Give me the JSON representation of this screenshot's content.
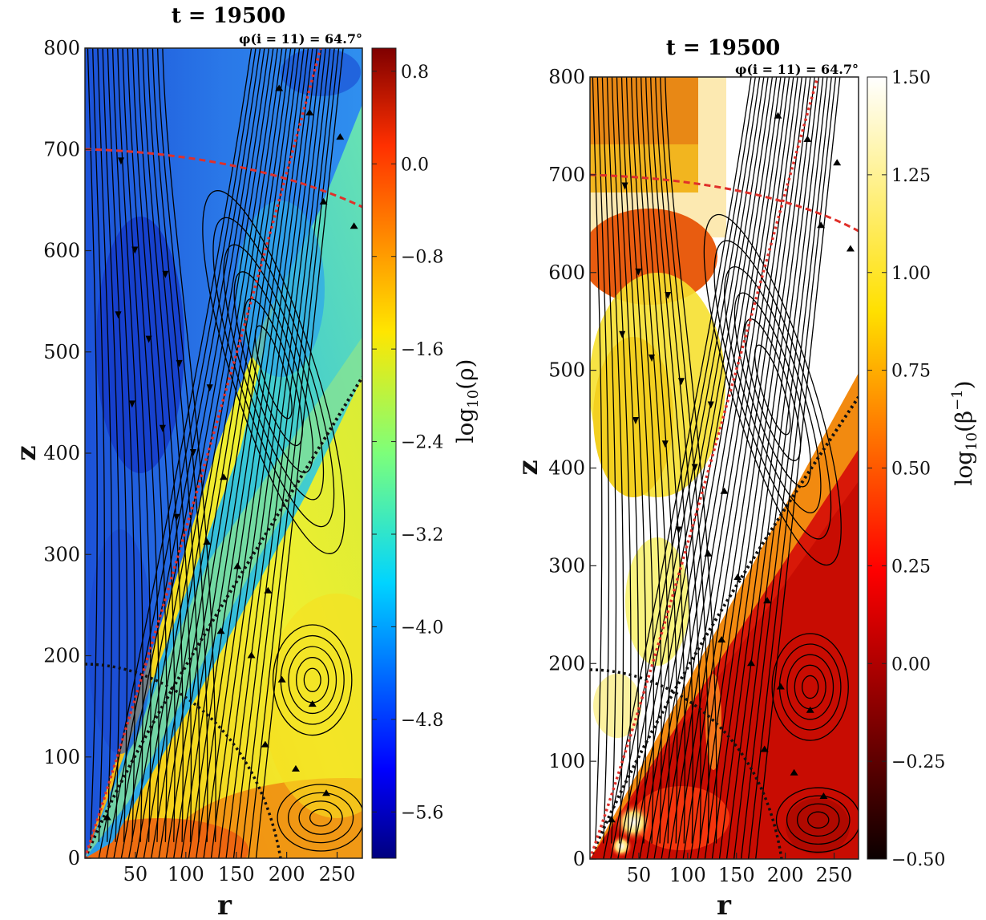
{
  "chart_data": [
    {
      "type": "heatmap",
      "title": "t = 19500",
      "subtitle": "φ(i = 11) = 64.7°",
      "xlabel": "r",
      "ylabel": "z",
      "xlim": [
        0,
        275
      ],
      "ylim": [
        0,
        800
      ],
      "xticks": [
        "50",
        "100",
        "150",
        "200",
        "250"
      ],
      "yticks": [
        "0",
        "100",
        "200",
        "300",
        "400",
        "500",
        "600",
        "700",
        "800"
      ],
      "colorbar": {
        "label": "log10(ρ)",
        "range": [
          -6.0,
          1.0
        ],
        "ticks": [
          "0.8",
          "0.0",
          "−0.8",
          "−1.6",
          "−2.4",
          "−3.2",
          "−4.0",
          "−4.8",
          "−5.6"
        ],
        "tick_values": [
          0.8,
          0.0,
          -0.8,
          -1.6,
          -2.4,
          -3.2,
          -4.0,
          -4.8,
          -5.6
        ],
        "colormap": "jet"
      }
    },
    {
      "type": "heatmap",
      "title": "t = 19500",
      "subtitle": "φ(i = 11) = 64.7°",
      "xlabel": "r",
      "ylabel": "z",
      "xlim": [
        0,
        275
      ],
      "ylim": [
        0,
        800
      ],
      "xticks": [
        "50",
        "100",
        "150",
        "200",
        "250"
      ],
      "yticks": [
        "0",
        "100",
        "200",
        "300",
        "400",
        "500",
        "600",
        "700",
        "800"
      ],
      "colorbar": {
        "label": "log10(β⁻¹)",
        "range": [
          -0.5,
          1.5
        ],
        "ticks": [
          "1.50",
          "1.25",
          "1.00",
          "0.75",
          "0.50",
          "0.25",
          "0.00",
          "−0.25",
          "−0.50"
        ],
        "tick_values": [
          1.5,
          1.25,
          1.0,
          0.75,
          0.5,
          0.25,
          0.0,
          -0.25,
          -0.5
        ],
        "colormap": "hot"
      }
    }
  ]
}
